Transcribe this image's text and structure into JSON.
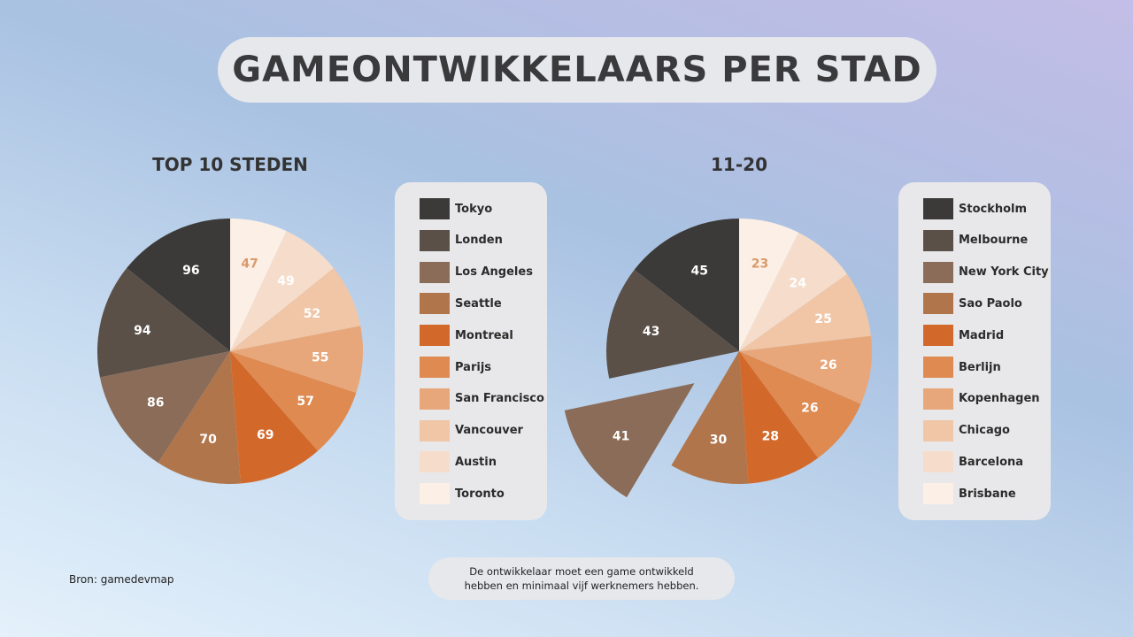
{
  "title": "GAMEONTWIKKELAARS PER STAD",
  "source": "Bron: gamedevmap",
  "note": "De ontwikkelaar moet een game ontwikkeld hebben en minimaal vijf werknemers hebben.",
  "chart_data": [
    {
      "type": "pie",
      "title": "TOP 10 STEDEN",
      "categories": [
        "Tokyo",
        "Londen",
        "Los Angeles",
        "Seattle",
        "Montreal",
        "Parijs",
        "San Francisco",
        "Vancouver",
        "Austin",
        "Toronto"
      ],
      "values": [
        96,
        94,
        86,
        70,
        69,
        57,
        55,
        52,
        49,
        47
      ],
      "colors": [
        "#3c3a38",
        "#5a5048",
        "#8a6c58",
        "#b0754b",
        "#d2692a",
        "#df8a50",
        "#e8a77a",
        "#f0c6a6",
        "#f6ddcb",
        "#fcefe5"
      ],
      "legend_position": "right"
    },
    {
      "type": "pie",
      "title": "11-20",
      "categories": [
        "Stockholm",
        "Melbourne",
        "New York City",
        "Sao Paolo",
        "Madrid",
        "Berlijn",
        "Kopenhagen",
        "Chicago",
        "Barcelona",
        "Brisbane"
      ],
      "values": [
        45,
        43,
        41,
        30,
        28,
        26,
        26,
        25,
        24,
        23
      ],
      "colors": [
        "#3c3a38",
        "#5a5048",
        "#8a6c58",
        "#b0754b",
        "#d2692a",
        "#df8a50",
        "#e8a77a",
        "#f0c6a6",
        "#f6ddcb",
        "#fcefe5"
      ],
      "exploded": [
        "New York City"
      ],
      "legend_position": "right"
    }
  ]
}
